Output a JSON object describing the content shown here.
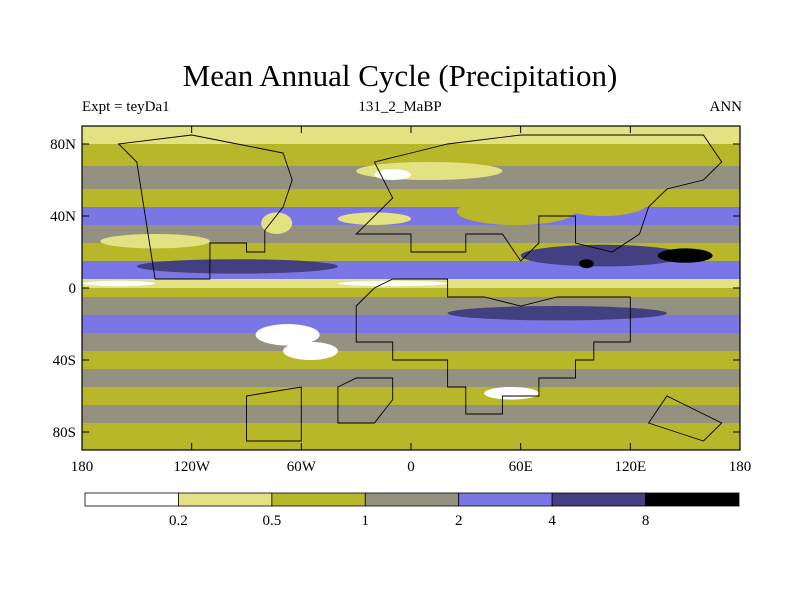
{
  "chart_data": {
    "type": "heatmap",
    "title": "Mean Annual Cycle (Precipitation)",
    "subtitle_left": "Expt = teyDa1",
    "subtitle_center": "131_2_MaBP",
    "subtitle_right": "ANN",
    "x_axis": {
      "range": [
        -180,
        180
      ],
      "ticks": [
        -180,
        -120,
        -60,
        0,
        60,
        120,
        180
      ],
      "tick_labels": [
        "180",
        "120W",
        "60W",
        "0",
        "60E",
        "120E",
        "180"
      ]
    },
    "y_axis": {
      "range": [
        -90,
        90
      ],
      "ticks": [
        80,
        40,
        0,
        -40,
        -80
      ],
      "tick_labels": [
        "80N",
        "40N",
        "0",
        "40S",
        "80S"
      ]
    },
    "colorbar": {
      "levels": [
        0.2,
        0.5,
        1,
        2,
        4,
        8
      ],
      "level_labels": [
        "0.2",
        "0.5",
        "1",
        "2",
        "4",
        "8"
      ],
      "colors": [
        "#ffffff",
        "#e3e283",
        "#b8b629",
        "#959180",
        "#7b76e5",
        "#434081",
        "#000000"
      ]
    },
    "field_bands": [
      {
        "lat": [
          80,
          90
        ],
        "class": 1
      },
      {
        "lat": [
          68,
          80
        ],
        "class": 2
      },
      {
        "lat": [
          55,
          68
        ],
        "class": 3
      },
      {
        "lat": [
          45,
          55
        ],
        "class": 2
      },
      {
        "lat": [
          35,
          45
        ],
        "class": 4
      },
      {
        "lat": [
          25,
          35
        ],
        "class": 3
      },
      {
        "lat": [
          15,
          25
        ],
        "class": 2
      },
      {
        "lat": [
          5,
          15
        ],
        "class": 4
      },
      {
        "lat": [
          0,
          5
        ],
        "class": 1
      },
      {
        "lat": [
          -5,
          0
        ],
        "class": 2
      },
      {
        "lat": [
          -15,
          -5
        ],
        "class": 3
      },
      {
        "lat": [
          -25,
          -15
        ],
        "class": 4
      },
      {
        "lat": [
          -35,
          -25
        ],
        "class": 3
      },
      {
        "lat": [
          -45,
          -35
        ],
        "class": 2
      },
      {
        "lat": [
          -55,
          -45
        ],
        "class": 3
      },
      {
        "lat": [
          -65,
          -55
        ],
        "class": 2
      },
      {
        "lat": [
          -75,
          -65
        ],
        "class": 3
      },
      {
        "lat": [
          -90,
          -75
        ],
        "class": 2
      }
    ],
    "field_blobs": [
      {
        "lon": [
          -150,
          -40
        ],
        "lat": [
          8,
          16
        ],
        "class": 5
      },
      {
        "lon": [
          20,
          140
        ],
        "lat": [
          -18,
          -10
        ],
        "class": 5
      },
      {
        "lon": [
          30,
          130
        ],
        "lat": [
          -16,
          -12
        ],
        "class": 5
      },
      {
        "lon": [
          60,
          150
        ],
        "lat": [
          12,
          24
        ],
        "class": 5
      },
      {
        "lon": [
          135,
          165
        ],
        "lat": [
          14,
          22
        ],
        "class": 6
      },
      {
        "lon": [
          92,
          100
        ],
        "lat": [
          11,
          16
        ],
        "class": 6
      },
      {
        "lon": [
          -170,
          -110
        ],
        "lat": [
          22,
          30
        ],
        "class": 1
      },
      {
        "lon": [
          -82,
          -65
        ],
        "lat": [
          30,
          42
        ],
        "class": 1
      },
      {
        "lon": [
          -40,
          0
        ],
        "lat": [
          35,
          42
        ],
        "class": 1
      },
      {
        "lon": [
          -85,
          -50
        ],
        "lat": [
          -32,
          -20
        ],
        "class": 0
      },
      {
        "lon": [
          -70,
          -40
        ],
        "lat": [
          -40,
          -30
        ],
        "class": 0
      },
      {
        "lon": [
          -180,
          -140
        ],
        "lat": [
          1,
          4
        ],
        "class": 0
      },
      {
        "lon": [
          -40,
          20
        ],
        "lat": [
          1,
          4
        ],
        "class": 0
      },
      {
        "lon": [
          40,
          70
        ],
        "lat": [
          -62,
          -55
        ],
        "class": 0
      },
      {
        "lon": [
          -30,
          50
        ],
        "lat": [
          60,
          70
        ],
        "class": 1
      },
      {
        "lon": [
          -20,
          0
        ],
        "lat": [
          60,
          66
        ],
        "class": 0
      },
      {
        "lon": [
          25,
          90
        ],
        "lat": [
          35,
          50
        ],
        "class": 2
      },
      {
        "lon": [
          80,
          130
        ],
        "lat": [
          40,
          55
        ],
        "class": 2
      }
    ],
    "land_outlines": [
      [
        [
          -30,
          -30
        ],
        [
          -10,
          -30
        ],
        [
          -10,
          -40
        ],
        [
          20,
          -40
        ],
        [
          20,
          -55
        ],
        [
          30,
          -55
        ],
        [
          30,
          -70
        ],
        [
          50,
          -70
        ],
        [
          50,
          -60
        ],
        [
          70,
          -60
        ],
        [
          70,
          -50
        ],
        [
          90,
          -50
        ],
        [
          90,
          -40
        ],
        [
          100,
          -40
        ],
        [
          100,
          -30
        ],
        [
          120,
          -30
        ],
        [
          120,
          -5
        ],
        [
          80,
          -5
        ],
        [
          60,
          -10
        ],
        [
          40,
          -5
        ],
        [
          20,
          -5
        ],
        [
          20,
          5
        ],
        [
          -10,
          5
        ],
        [
          -20,
          0
        ],
        [
          -30,
          -10
        ]
      ],
      [
        [
          -30,
          -50
        ],
        [
          -10,
          -50
        ],
        [
          -10,
          -62
        ],
        [
          -20,
          -75
        ],
        [
          -40,
          -75
        ],
        [
          -40,
          -55
        ]
      ],
      [
        [
          -140,
          5
        ],
        [
          -110,
          5
        ],
        [
          -110,
          25
        ],
        [
          -90,
          25
        ],
        [
          -90,
          20
        ],
        [
          -80,
          20
        ],
        [
          -80,
          32
        ],
        [
          -70,
          45
        ],
        [
          -65,
          60
        ],
        [
          -70,
          75
        ],
        [
          -95,
          80
        ],
        [
          -120,
          85
        ],
        [
          -160,
          80
        ],
        [
          -150,
          70
        ]
      ],
      [
        [
          -30,
          30
        ],
        [
          0,
          30
        ],
        [
          0,
          20
        ],
        [
          30,
          20
        ],
        [
          30,
          30
        ],
        [
          50,
          30
        ],
        [
          60,
          15
        ],
        [
          70,
          25
        ],
        [
          70,
          40
        ],
        [
          90,
          40
        ],
        [
          90,
          25
        ],
        [
          110,
          20
        ],
        [
          125,
          30
        ],
        [
          130,
          45
        ],
        [
          140,
          55
        ],
        [
          160,
          60
        ],
        [
          170,
          70
        ],
        [
          160,
          85
        ],
        [
          60,
          85
        ],
        [
          20,
          80
        ],
        [
          0,
          75
        ],
        [
          -20,
          70
        ],
        [
          -10,
          50
        ],
        [
          -20,
          40
        ]
      ],
      [
        [
          130,
          -75
        ],
        [
          145,
          -80
        ],
        [
          160,
          -85
        ],
        [
          170,
          -75
        ],
        [
          150,
          -65
        ],
        [
          140,
          -60
        ]
      ],
      [
        [
          -90,
          -60
        ],
        [
          -60,
          -55
        ],
        [
          -60,
          -85
        ],
        [
          -90,
          -85
        ]
      ]
    ]
  }
}
